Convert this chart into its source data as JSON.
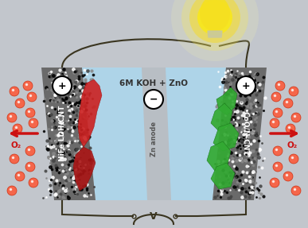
{
  "bg_color": "#c2c6cc",
  "electrolyte_color": "#aed4e8",
  "electrolyte_color2": "#c0dff0",
  "electrode_gray_color": "#6a6a6a",
  "zn_anode_color": "#b8bec4",
  "left_catalyst_color": "#cc2222",
  "right_catalyst_color": "#33aa33",
  "title_text": "6M KOH + ZnO",
  "left_label": "NiFe LDH/CNT",
  "right_label": "CoO/N-CNT",
  "center_label": "Zn anode",
  "o2_label": "O₂",
  "wire_color": "#3a3520",
  "text_dark": "#333333",
  "white": "#ffffff"
}
